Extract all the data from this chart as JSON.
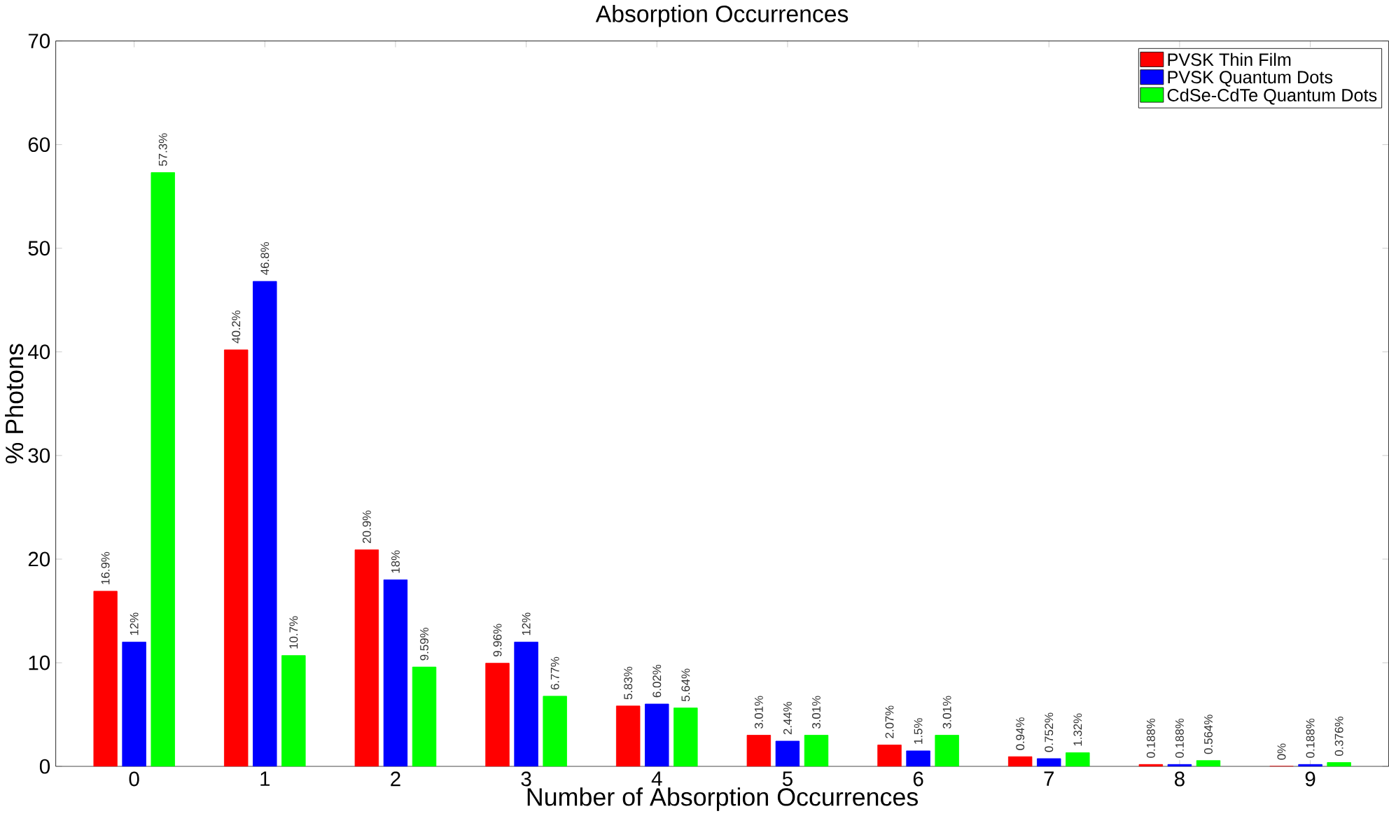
{
  "chart_data": {
    "type": "bar",
    "title": "Absorption Occurrences",
    "xlabel": "Number of Absorption Occurrences",
    "ylabel": "% Photons",
    "categories": [
      "0",
      "1",
      "2",
      "3",
      "4",
      "5",
      "6",
      "7",
      "8",
      "9"
    ],
    "series": [
      {
        "name": "PVSK Thin Film",
        "color": "#ff0000",
        "values": [
          16.9,
          40.2,
          20.9,
          9.96,
          5.83,
          3.01,
          2.07,
          0.94,
          0.188,
          0
        ],
        "value_labels": [
          "16.9%",
          "40.2%",
          "20.9%",
          "9.96%",
          "5.83%",
          "3.01%",
          "2.07%",
          "0.94%",
          "0.188%",
          "0%"
        ]
      },
      {
        "name": "PVSK Quantum Dots",
        "color": "#0000ff",
        "values": [
          12,
          46.8,
          18,
          12,
          6.02,
          2.44,
          1.5,
          0.752,
          0.188,
          0.188
        ],
        "value_labels": [
          "12%",
          "46.8%",
          "18%",
          "12%",
          "6.02%",
          "2.44%",
          "1.5%",
          "0.752%",
          "0.188%",
          "0.188%"
        ]
      },
      {
        "name": "CdSe-CdTe Quantum Dots",
        "color": "#00ff00",
        "values": [
          57.3,
          10.7,
          9.59,
          6.77,
          5.64,
          3.01,
          3.01,
          1.32,
          0.564,
          0.376
        ],
        "value_labels": [
          "57.3%",
          "10.7%",
          "9.59%",
          "6.77%",
          "5.64%",
          "3.01%",
          "3.01%",
          "1.32%",
          "0.564%",
          "0.376%"
        ]
      }
    ],
    "ylim": [
      0,
      70
    ],
    "yticks": [
      0,
      10,
      20,
      30,
      40,
      50,
      60,
      70
    ],
    "grid": false,
    "legend": "top right"
  }
}
